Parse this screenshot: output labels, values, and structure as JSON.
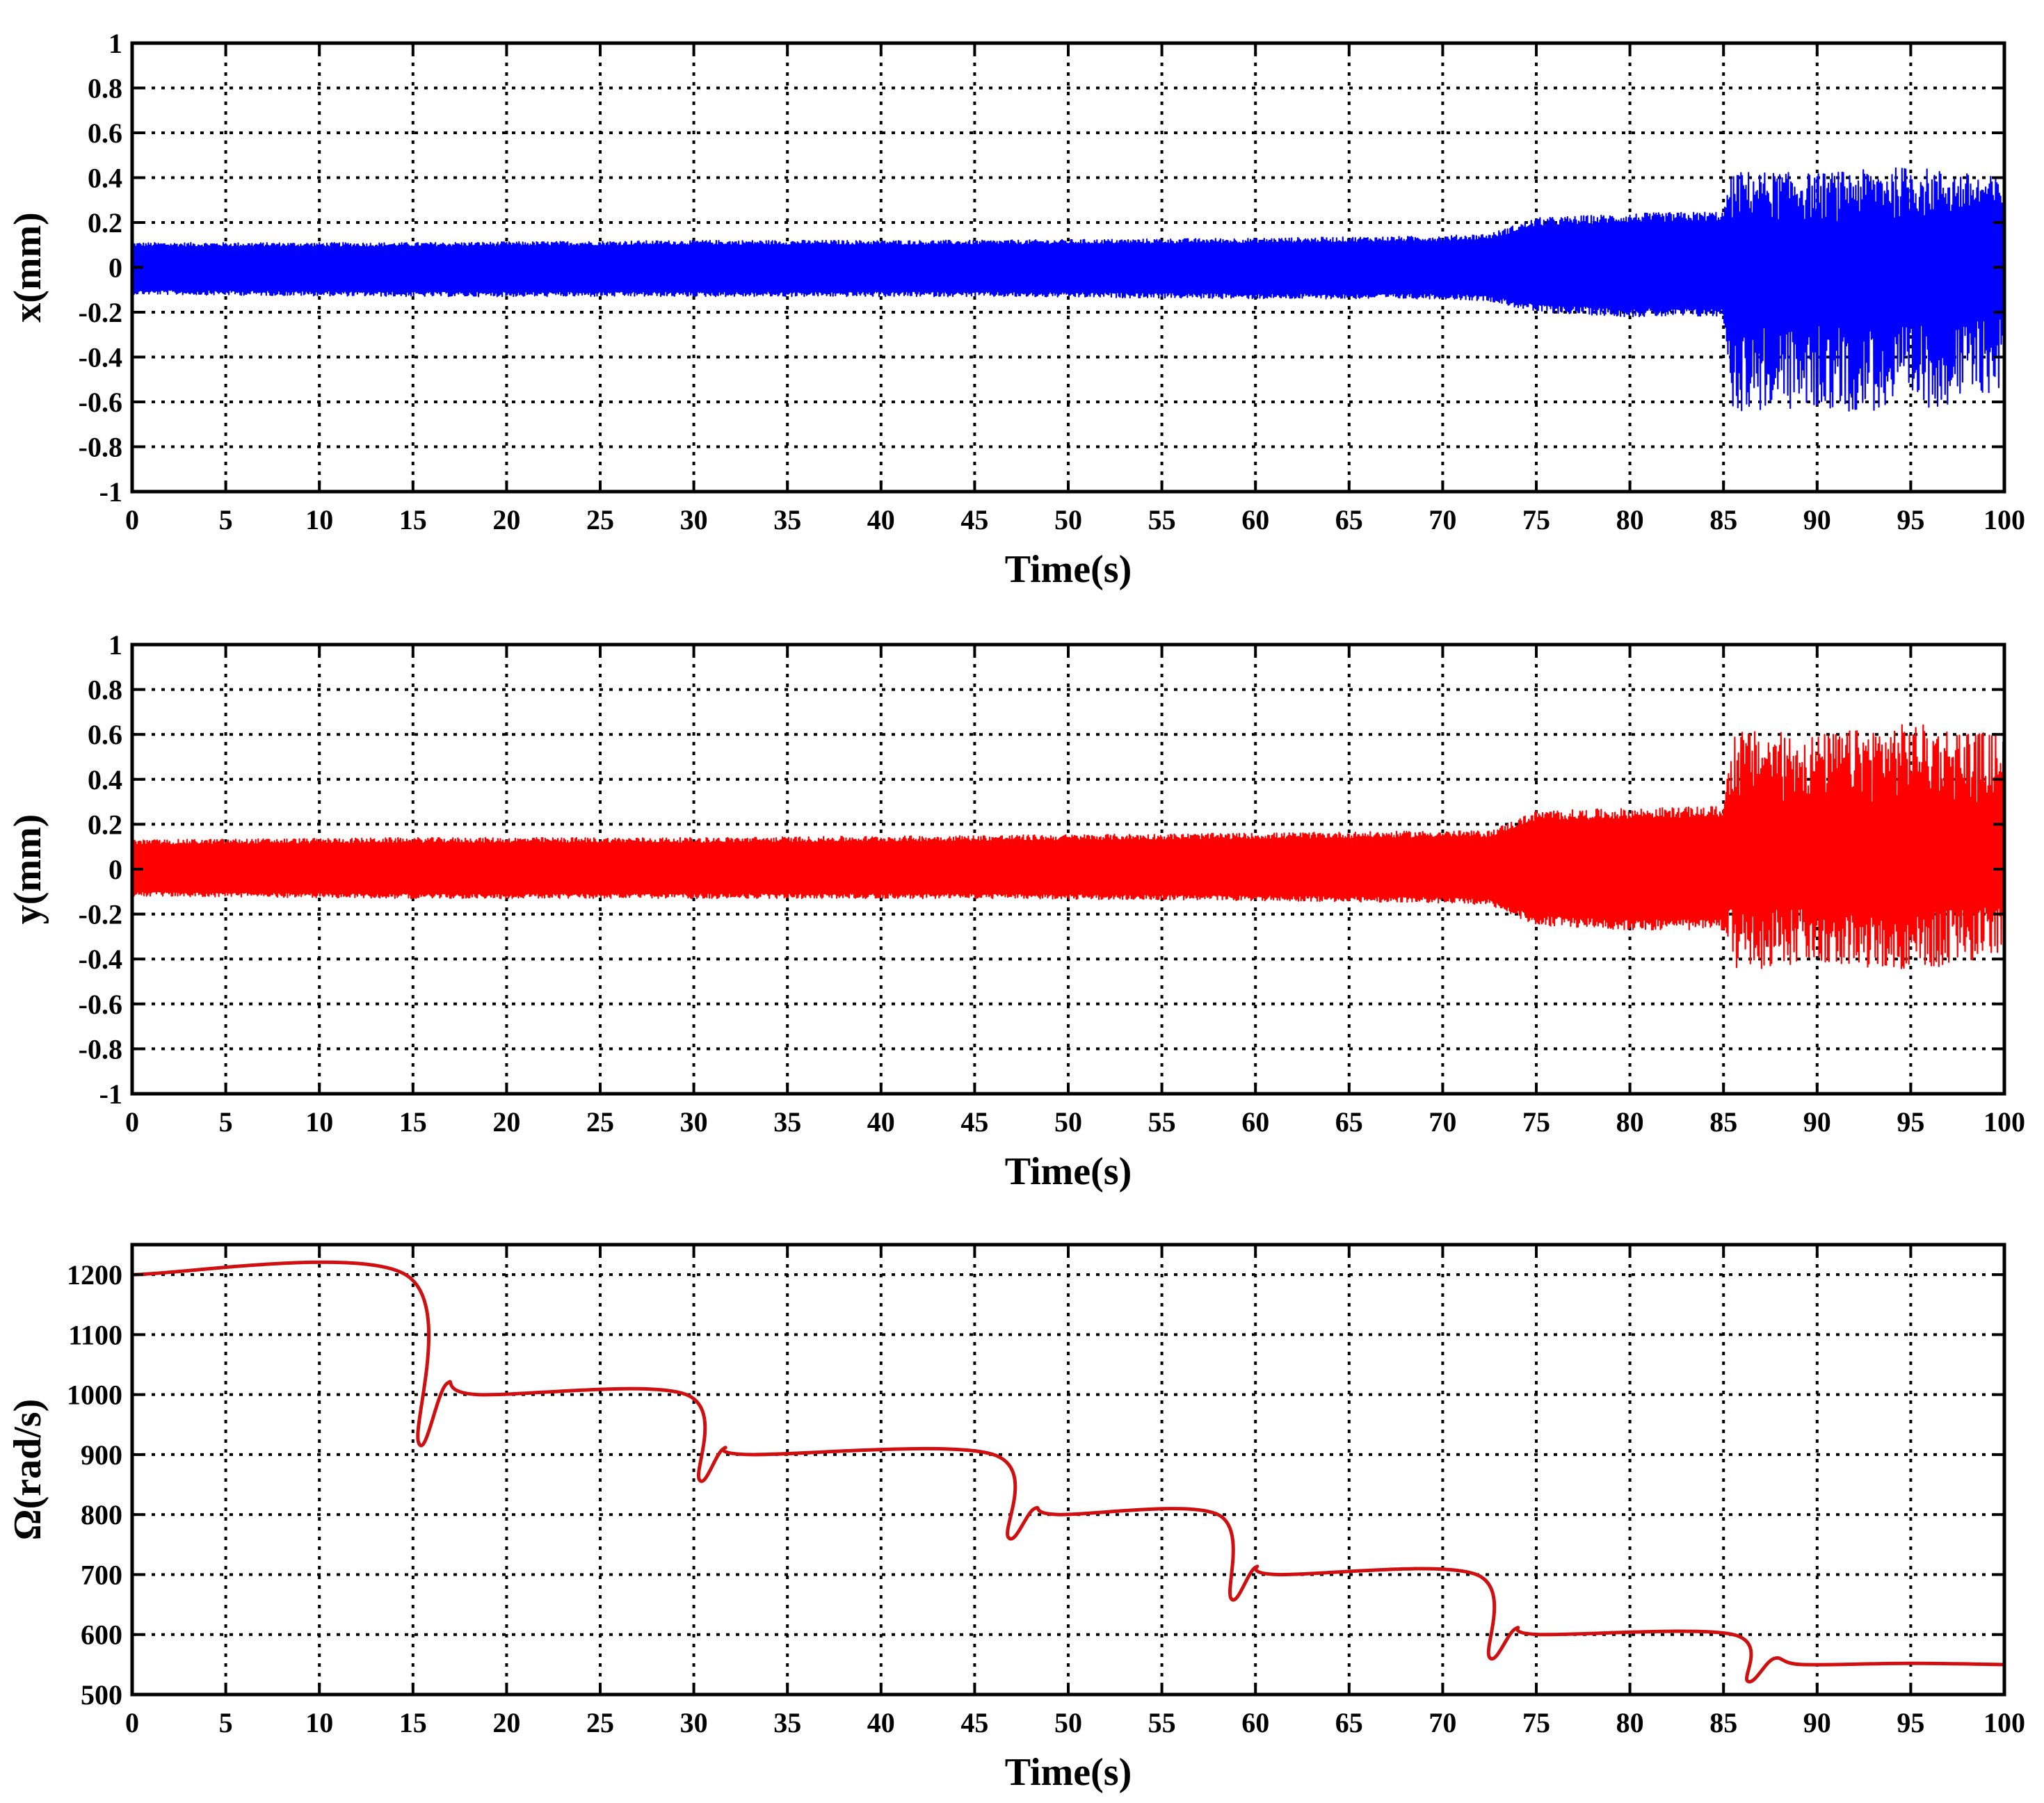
{
  "colors": {
    "x_series": "#0000ff",
    "y_series": "#ff0000",
    "omega_series": "#d01010",
    "grid": "#000000"
  },
  "chart_data": [
    {
      "type": "line",
      "xlabel": "Time(s)",
      "ylabel": "x(mm)",
      "xlim": [
        0,
        100
      ],
      "ylim": [
        -1,
        1
      ],
      "x_ticks": [
        "0",
        "5",
        "10",
        "15",
        "20",
        "25",
        "30",
        "35",
        "40",
        "45",
        "50",
        "55",
        "60",
        "65",
        "70",
        "75",
        "80",
        "85",
        "90",
        "95",
        "100"
      ],
      "y_ticks": [
        "1",
        "0.8",
        "0.6",
        "0.4",
        "0.2",
        "0",
        "-0.2",
        "-0.4",
        "-0.6",
        "-0.8",
        "-1"
      ],
      "grid": true,
      "series": [
        {
          "x": [
            0,
            15,
            30,
            45,
            60,
            70,
            72.5,
            75,
            80,
            85,
            85.5,
            90,
            95,
            100
          ],
          "upper": [
            0.11,
            0.11,
            0.12,
            0.12,
            0.13,
            0.14,
            0.15,
            0.22,
            0.24,
            0.25,
            0.43,
            0.42,
            0.45,
            0.4
          ],
          "lower": [
            -0.12,
            -0.13,
            -0.13,
            -0.13,
            -0.14,
            -0.14,
            -0.15,
            -0.2,
            -0.22,
            -0.22,
            -0.65,
            -0.64,
            -0.65,
            -0.55
          ]
        }
      ]
    },
    {
      "type": "line",
      "xlabel": "Time(s)",
      "ylabel": "y(mm)",
      "xlim": [
        0,
        100
      ],
      "ylim": [
        -1,
        1
      ],
      "x_ticks": [
        "0",
        "5",
        "10",
        "15",
        "20",
        "25",
        "30",
        "35",
        "40",
        "45",
        "50",
        "55",
        "60",
        "65",
        "70",
        "75",
        "80",
        "85",
        "90",
        "95",
        "100"
      ],
      "y_ticks": [
        "1",
        "0.8",
        "0.6",
        "0.4",
        "0.2",
        "0",
        "-0.2",
        "-0.4",
        "-0.6",
        "-0.8",
        "-1"
      ],
      "grid": true,
      "series": [
        {
          "x": [
            0,
            15,
            30,
            45,
            60,
            70,
            72.5,
            75,
            80,
            85,
            85.5,
            90,
            95,
            100
          ],
          "upper": [
            0.13,
            0.14,
            0.14,
            0.15,
            0.16,
            0.17,
            0.17,
            0.26,
            0.27,
            0.28,
            0.62,
            0.6,
            0.65,
            0.6
          ],
          "lower": [
            -0.12,
            -0.13,
            -0.13,
            -0.13,
            -0.14,
            -0.15,
            -0.16,
            -0.25,
            -0.27,
            -0.27,
            -0.45,
            -0.43,
            -0.45,
            -0.4
          ]
        }
      ]
    },
    {
      "type": "line",
      "xlabel": "Time(s)",
      "ylabel": "Ω(rad/s)",
      "xlim": [
        0,
        100
      ],
      "ylim": [
        500,
        1250
      ],
      "x_ticks": [
        "0",
        "5",
        "10",
        "15",
        "20",
        "25",
        "30",
        "35",
        "40",
        "45",
        "50",
        "55",
        "60",
        "65",
        "70",
        "75",
        "80",
        "85",
        "90",
        "95",
        "100"
      ],
      "y_ticks": [
        "1200",
        "1100",
        "1000",
        "900",
        "800",
        "700",
        "600",
        "500"
      ],
      "grid": true,
      "series": [
        {
          "x": [
            0,
            14.6,
            15.3,
            16.8,
            18.5,
            29.6,
            30.3,
            31.6,
            33.0,
            46.0,
            46.8,
            48.2,
            49.5,
            58.0,
            58.7,
            60.0,
            61.2,
            71.8,
            72.5,
            73.9,
            75.2,
            85.5,
            86.3,
            87.7,
            89.2,
            95.0,
            100
          ],
          "y": [
            1200,
            1200,
            920,
            1018,
            1000,
            1000,
            858,
            910,
            900,
            900,
            762,
            810,
            800,
            800,
            660,
            712,
            700,
            700,
            562,
            610,
            600,
            600,
            522,
            560,
            550,
            552,
            550
          ]
        }
      ]
    }
  ]
}
